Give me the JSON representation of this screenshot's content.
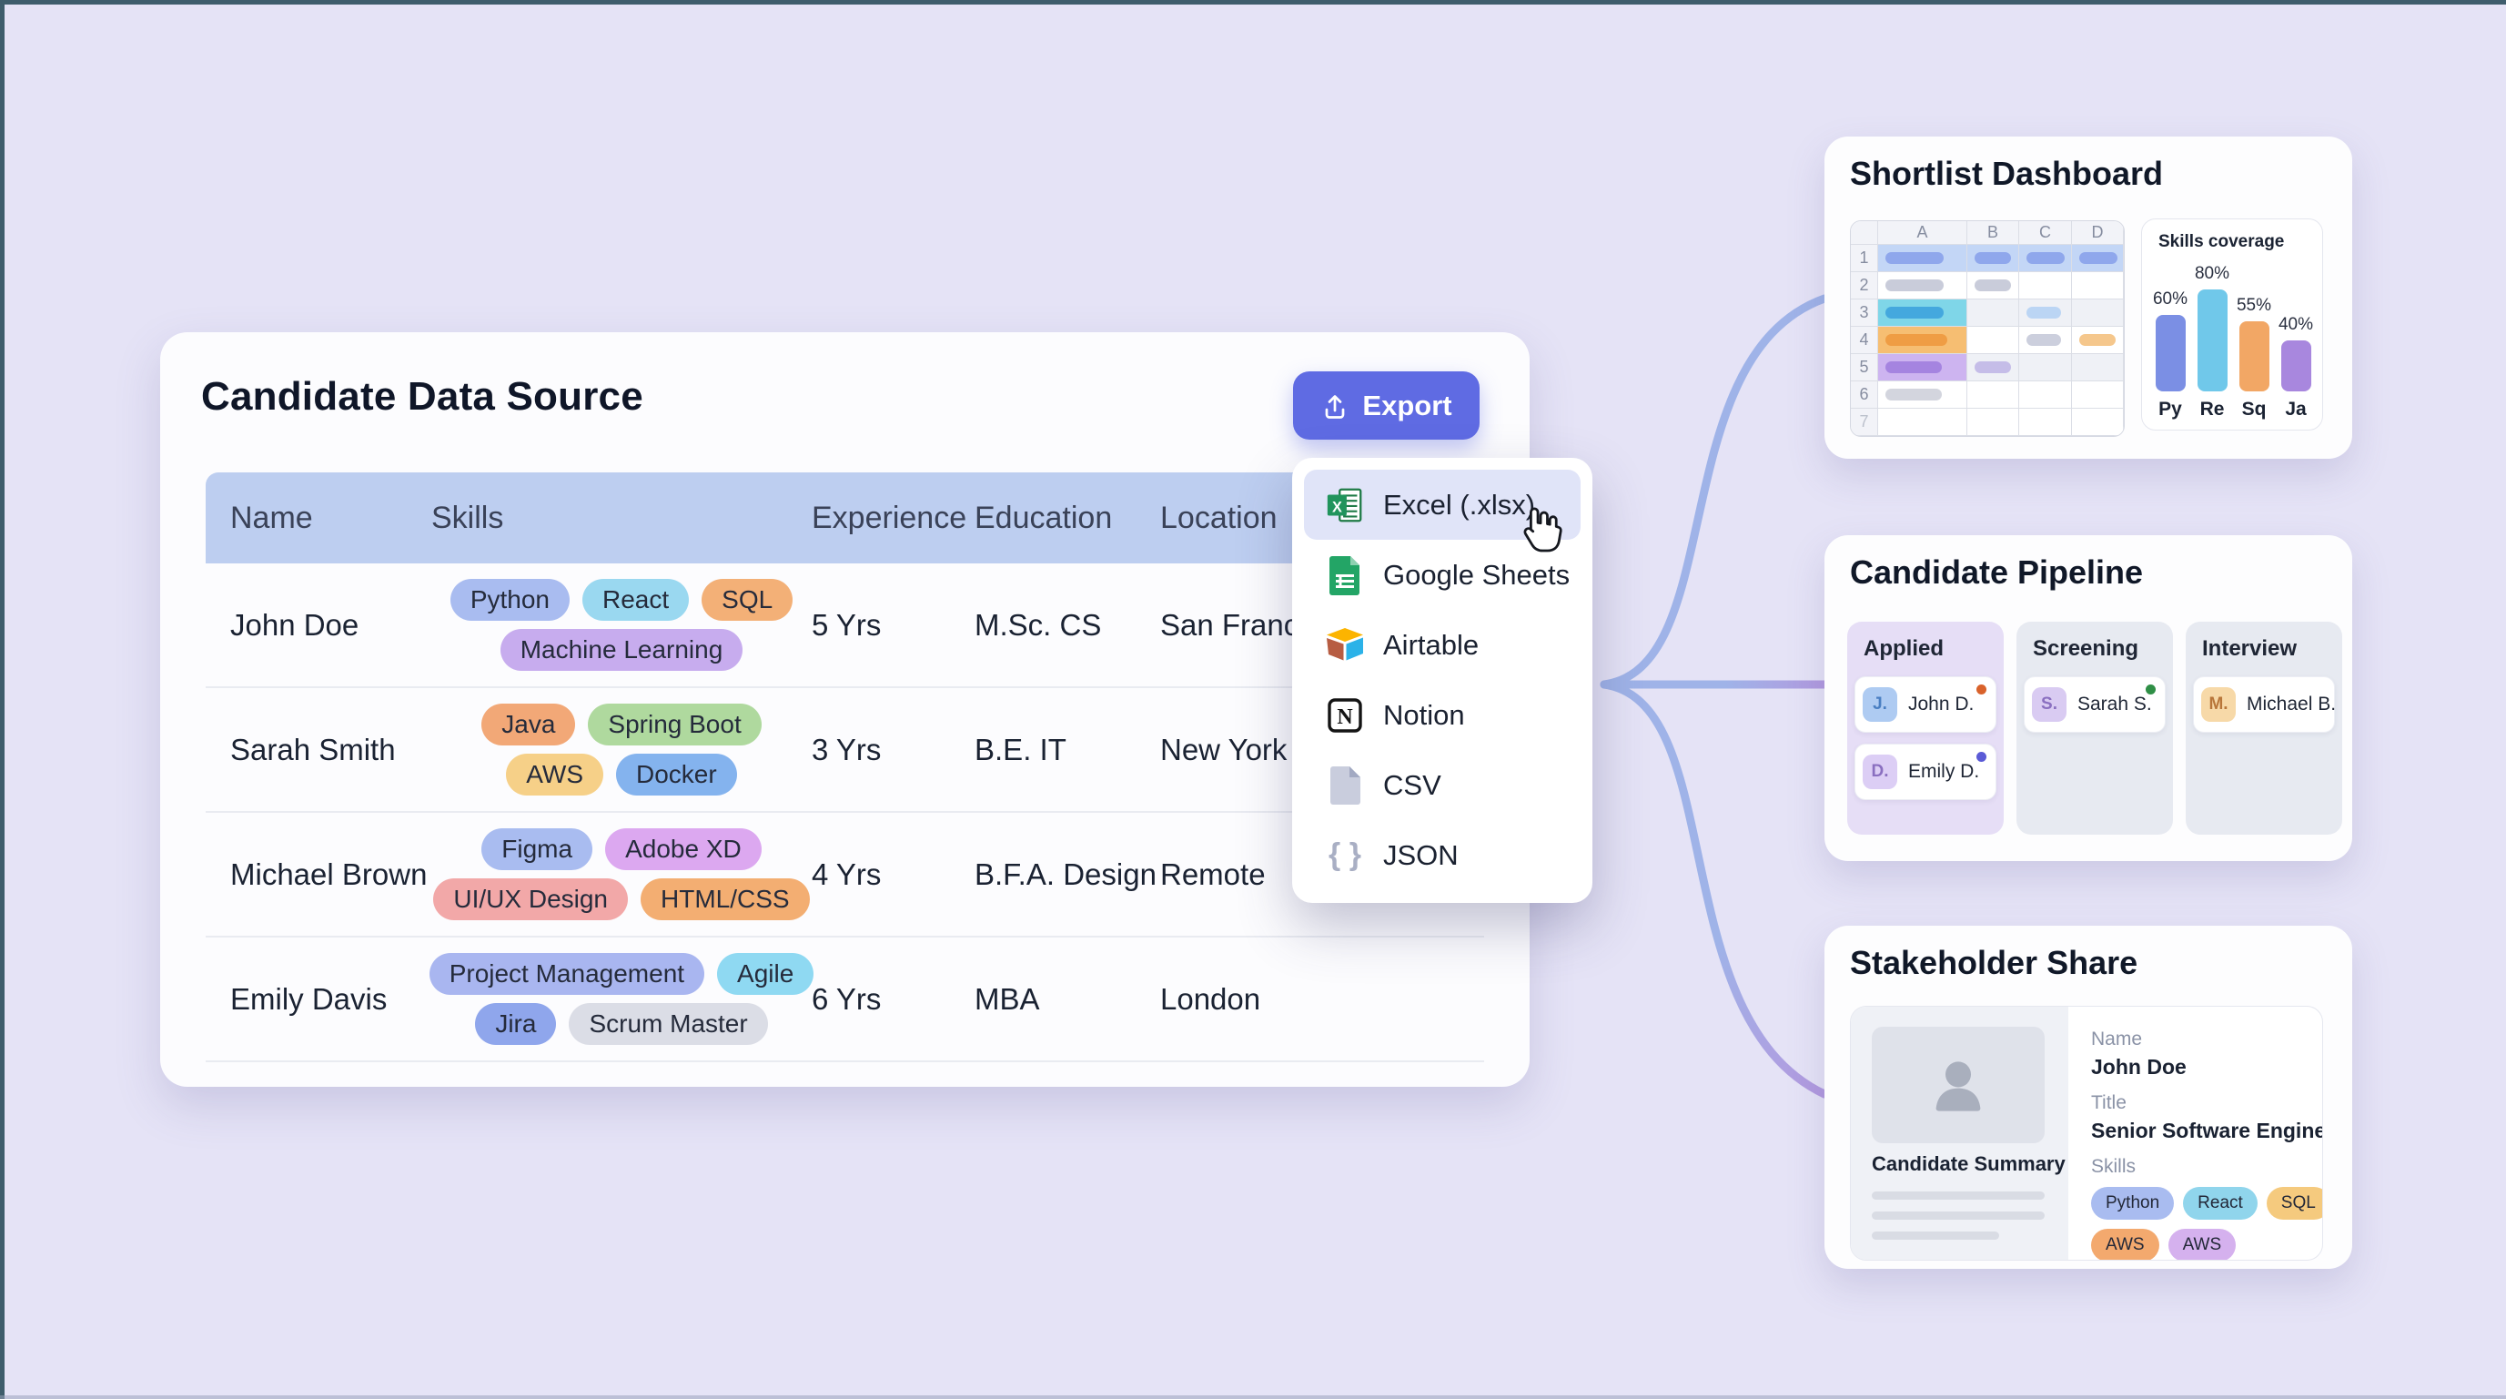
{
  "background": {
    "canvas_color": "#E5E3F6",
    "frame_color": "#3F5D6C",
    "connector_blue": "#9FB3E8",
    "connector_purple": "#B29ADF"
  },
  "source_panel": {
    "title": "Candidate Data Source",
    "export_button": {
      "label": "Export",
      "color": "#5F6BE3",
      "icon": "upload-icon"
    },
    "table": {
      "headers": [
        "Name",
        "Skills",
        "Experience",
        "Education",
        "Location"
      ],
      "rows": [
        {
          "name": "John Doe",
          "skills_lines": [
            [
              {
                "label": "Python",
                "bg": "#A9BCF0"
              },
              {
                "label": "React",
                "bg": "#9AD8F0"
              },
              {
                "label": "SQL",
                "bg": "#F3B077"
              }
            ],
            [
              {
                "label": "Machine Learning",
                "bg": "#C7ACEE"
              }
            ]
          ],
          "experience": "5 Yrs",
          "education": "M.Sc. CS",
          "location": "San Francisco"
        },
        {
          "name": "Sarah Smith",
          "skills_lines": [
            [
              {
                "label": "Java",
                "bg": "#F2A877"
              },
              {
                "label": "Spring Boot",
                "bg": "#AFD99E"
              }
            ],
            [
              {
                "label": "AWS",
                "bg": "#F6D088"
              },
              {
                "label": "Docker",
                "bg": "#84B3EE"
              }
            ]
          ],
          "experience": "3 Yrs",
          "education": "B.E. IT",
          "location": "New York"
        },
        {
          "name": "Michael Brown",
          "skills_lines": [
            [
              {
                "label": "Figma",
                "bg": "#A9BCF0"
              },
              {
                "label": "Adobe XD",
                "bg": "#DCA8F0"
              }
            ],
            [
              {
                "label": "UI/UX Design",
                "bg": "#F2A8A8"
              },
              {
                "label": "HTML/CSS",
                "bg": "#F3AE72"
              }
            ]
          ],
          "experience": "4 Yrs",
          "education": "B.F.A. Design",
          "location": "Remote"
        },
        {
          "name": "Emily Davis",
          "skills_lines": [
            [
              {
                "label": "Project Management",
                "bg": "#A9B6F0"
              },
              {
                "label": "Agile",
                "bg": "#8FD9F2"
              }
            ],
            [
              {
                "label": "Jira",
                "bg": "#8FA6EC"
              },
              {
                "label": "Scrum Master",
                "bg": "#DBDDE6"
              }
            ]
          ],
          "experience": "6 Yrs",
          "education": "MBA",
          "location": "London"
        }
      ]
    }
  },
  "export_menu": {
    "items": [
      {
        "label": "Excel (.xlsx)",
        "icon": "excel-icon",
        "highlighted": true
      },
      {
        "label": "Google Sheets",
        "icon": "google-sheets-icon",
        "highlighted": false
      },
      {
        "label": "Airtable",
        "icon": "airtable-icon",
        "highlighted": false
      },
      {
        "label": "Notion",
        "icon": "notion-icon",
        "highlighted": false
      },
      {
        "label": "CSV",
        "icon": "csv-icon",
        "highlighted": false
      },
      {
        "label": "JSON",
        "icon": "json-icon",
        "highlighted": false
      }
    ]
  },
  "shortlist_card": {
    "title": "Shortlist Dashboard",
    "spreadsheet": {
      "col_headers": [
        "A",
        "B",
        "C",
        "D"
      ],
      "row_numbers": [
        "1",
        "2",
        "3",
        "4",
        "5",
        "6",
        "7"
      ],
      "rows": [
        {
          "bg": "#C3D6F6",
          "cells": [
            {
              "c": "A",
              "bar": "#8FA7EC",
              "w": 64
            },
            {
              "c": "B",
              "bar": "#8FA7EC",
              "w": 40
            },
            {
              "c": "C",
              "bar": "#8FA7EC",
              "w": 42
            },
            {
              "c": "D",
              "bar": "#8FA7EC",
              "w": 42
            }
          ]
        },
        {
          "cells": [
            {
              "c": "A",
              "bar": "#C9CCDA",
              "w": 64
            },
            {
              "c": "B",
              "bar": "#C9CCDA",
              "w": 40
            }
          ]
        },
        {
          "stripe": true,
          "cells": [
            {
              "c": "A",
              "bg": "#7FD6E8",
              "bar": "#44A8DE",
              "w": 64
            },
            {
              "c": "C",
              "bar": "#BBD5F4",
              "w": 38
            }
          ]
        },
        {
          "cells": [
            {
              "c": "A",
              "bg": "#F6BE72",
              "bar": "#EF9D44",
              "w": 68
            },
            {
              "c": "C",
              "bar": "#CCCFDD",
              "w": 38
            },
            {
              "c": "D",
              "bar": "#F5C78C",
              "w": 40
            }
          ]
        },
        {
          "stripe": true,
          "cells": [
            {
              "c": "A",
              "bg": "#CDB4F0",
              "bar": "#A584E0",
              "w": 62
            },
            {
              "c": "B",
              "bar": "#C5BDE8",
              "w": 40
            }
          ]
        },
        {
          "cells": [
            {
              "c": "A",
              "bar": "#D3D5DE",
              "w": 62
            }
          ]
        },
        {
          "cells": []
        }
      ]
    },
    "chart_data": {
      "type": "bar",
      "title": "Skills coverage",
      "categories": [
        "Py",
        "Re",
        "Sq",
        "Ja"
      ],
      "values": [
        60,
        80,
        55,
        40
      ],
      "value_labels": [
        "60%",
        "80%",
        "55%",
        "40%"
      ],
      "colors": [
        "#7B8FE4",
        "#70C8EA",
        "#F2A765",
        "#A887DE"
      ],
      "ylim": [
        0,
        100
      ],
      "legend": "none",
      "grid": "off"
    }
  },
  "pipeline_card": {
    "title": "Candidate Pipeline",
    "columns": [
      {
        "label": "Applied",
        "bg": "#E6DEF6",
        "cards": [
          {
            "initial": "J.",
            "avatar_bg": "#AECBF2",
            "avatar_color": "#4A7FC2",
            "name": "John D.",
            "dot": "#D9622B"
          },
          {
            "initial": "D.",
            "avatar_bg": "#DCCEF5",
            "avatar_color": "#8A6FC0",
            "name": "Emily D.",
            "dot": "#5B5BD6"
          }
        ]
      },
      {
        "label": "Screening",
        "bg": "#E7EAF1",
        "cards": [
          {
            "initial": "S.",
            "avatar_bg": "#D9CBF2",
            "avatar_color": "#8A6FC0",
            "name": "Sarah S.",
            "dot": "#2F8F46"
          }
        ]
      },
      {
        "label": "Interview",
        "bg": "#E7EAF1",
        "cards": [
          {
            "initial": "M.",
            "avatar_bg": "#F7D9A8",
            "avatar_color": "#B8763A",
            "name": "Michael B.",
            "dot": null
          }
        ]
      }
    ]
  },
  "share_card": {
    "title": "Stakeholder Share",
    "summary_label": "Candidate Summary",
    "name_label": "Name",
    "name_value": "John Doe",
    "title_label": "Title",
    "title_value": "Senior Software Engineer",
    "skills_label": "Skills",
    "skills": [
      {
        "label": "Python",
        "bg": "#A9BCF0"
      },
      {
        "label": "React",
        "bg": "#90D5EC"
      },
      {
        "label": "SQL",
        "bg": "#F5CA7E"
      },
      {
        "label": "AWS",
        "bg": "#F3A96E"
      },
      {
        "label": "AWS",
        "bg": "#D5B1EE"
      }
    ]
  }
}
